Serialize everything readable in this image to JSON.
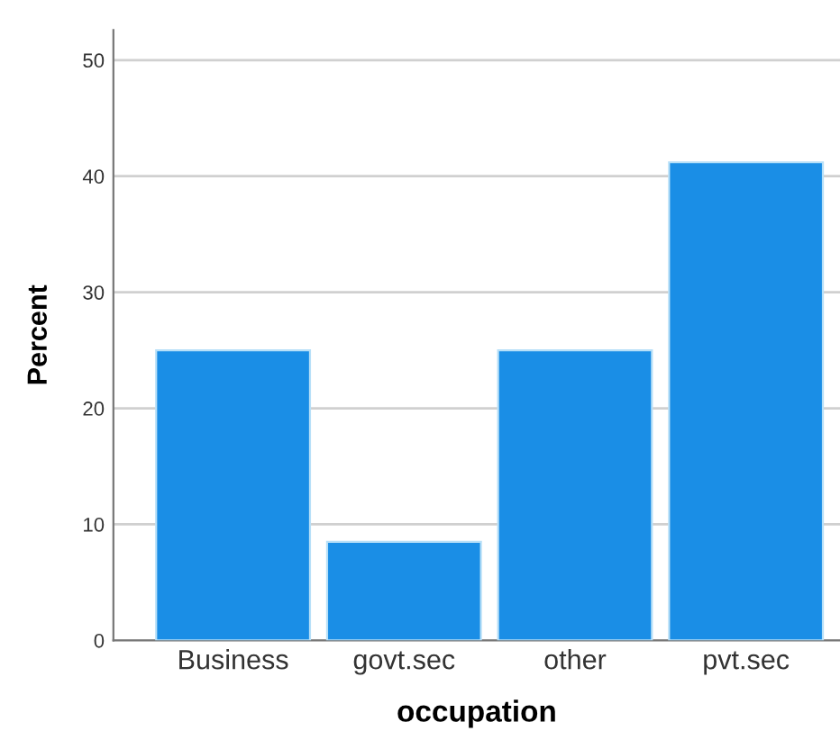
{
  "chart_data": {
    "type": "bar",
    "xlabel": "occupation",
    "ylabel": "Percent",
    "categories": [
      "Business",
      "govt.sec",
      "other",
      "pvt.sec"
    ],
    "values": [
      25.0,
      8.5,
      25.0,
      41.2
    ],
    "color": "#1a8ee6",
    "ylim": [
      0,
      52.6
    ],
    "yticks": [
      0,
      10,
      20,
      30,
      40,
      50
    ],
    "grid": "y",
    "legend": false
  }
}
